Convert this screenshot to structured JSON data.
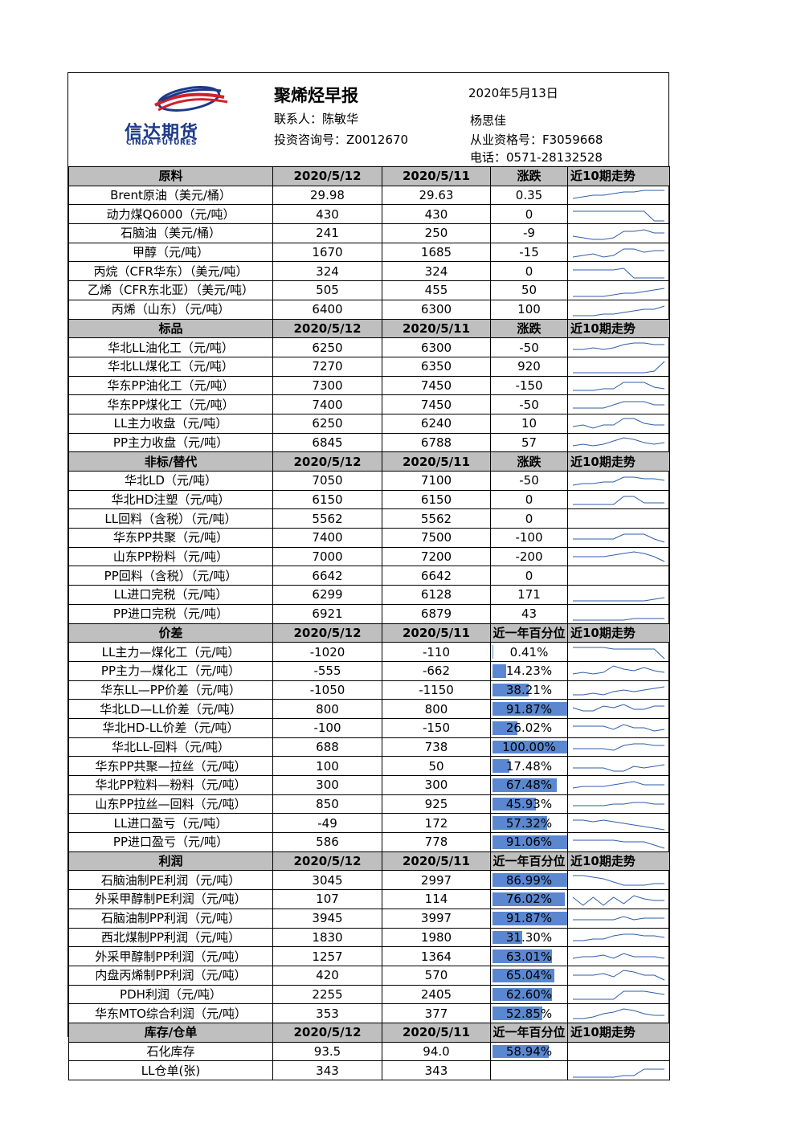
{
  "header": {
    "logo": {
      "cn": "信达期货",
      "en": "CINDA FUTURES"
    },
    "title": "聚烯烃早报",
    "date": "2020年5月13日",
    "contact": "联系人：陈敏华",
    "consult": "投资咨询号：Z0012670",
    "analyst": "杨思佳",
    "license": "从业资格号：F3059668",
    "phone": "电话：0571-28132528"
  },
  "columns": {
    "d1": "2020/5/12",
    "d2": "2020/5/11",
    "change": "涨跌",
    "pct": "近一年百分位",
    "trend": "近10期走势"
  },
  "sections": [
    {
      "title": "原料",
      "col3": "change",
      "rows": [
        {
          "name": "Brent原油（美元/桶）",
          "v1": "29.98",
          "v2": "29.63",
          "c": "0.35",
          "spark": [
            7,
            6,
            5,
            5,
            4,
            3,
            3,
            2,
            2,
            2
          ]
        },
        {
          "name": "动力煤Q6000（元/吨）",
          "v1": "430",
          "v2": "430",
          "c": "0",
          "spark": [
            3,
            3,
            3,
            3,
            3,
            3,
            3,
            3,
            9,
            9
          ]
        },
        {
          "name": "石脑油（美元/桶）",
          "v1": "241",
          "v2": "250",
          "c": "-9",
          "spark": [
            7,
            8,
            9,
            9,
            8,
            4,
            4,
            3,
            5,
            5
          ]
        },
        {
          "name": "甲醇（元/吨）",
          "v1": "1670",
          "v2": "1685",
          "c": "-15",
          "spark": [
            8,
            7,
            6,
            8,
            7,
            3,
            3,
            5,
            4,
            4
          ]
        },
        {
          "name": "丙烷（CFR华东）（美元/吨）",
          "v1": "324",
          "v2": "324",
          "c": "0",
          "spark": [
            4,
            4,
            4,
            4,
            4,
            3,
            9,
            9,
            9,
            9
          ]
        },
        {
          "name": "乙烯（CFR东北亚）（美元/吨）",
          "v1": "505",
          "v2": "455",
          "c": "50",
          "spark": [
            9,
            9,
            9,
            9,
            8,
            7,
            7,
            6,
            5,
            4
          ]
        },
        {
          "name": "丙烯（山东）（元/吨）",
          "v1": "6400",
          "v2": "6300",
          "c": "100",
          "spark": [
            9,
            9,
            9,
            8,
            8,
            7,
            6,
            5,
            5,
            3
          ]
        }
      ]
    },
    {
      "title": "标品",
      "col3": "change",
      "rows": [
        {
          "name": "华北LL油化工（元/吨）",
          "v1": "6250",
          "v2": "6300",
          "c": "-50",
          "spark": [
            6,
            6,
            5,
            6,
            5,
            3,
            2,
            2,
            3,
            3
          ]
        },
        {
          "name": "华北LL煤化工（元/吨）",
          "v1": "7270",
          "v2": "6350",
          "c": "920",
          "spark": [
            9,
            9,
            9,
            9,
            9,
            9,
            9,
            9,
            8,
            2
          ]
        },
        {
          "name": "华东PP油化工（元/吨）",
          "v1": "7300",
          "v2": "7450",
          "c": "-150",
          "spark": [
            8,
            8,
            8,
            7,
            7,
            3,
            3,
            3,
            6,
            7
          ]
        },
        {
          "name": "华东PP煤化工（元/吨）",
          "v1": "7400",
          "v2": "7450",
          "c": "-50",
          "spark": [
            7,
            7,
            7,
            7,
            5,
            3,
            3,
            3,
            5,
            5
          ]
        },
        {
          "name": "LL主力收盘（元/吨）",
          "v1": "6250",
          "v2": "6240",
          "c": "10",
          "spark": [
            7,
            6,
            8,
            6,
            6,
            2,
            2,
            5,
            6,
            6
          ]
        },
        {
          "name": "PP主力收盘（元/吨）",
          "v1": "6845",
          "v2": "6788",
          "c": "57",
          "spark": [
            7,
            6,
            7,
            6,
            4,
            2,
            3,
            5,
            6,
            5
          ]
        }
      ]
    },
    {
      "title": "非标/替代",
      "col3": "change",
      "rows": [
        {
          "name": "华北LD（元/吨）",
          "v1": "7050",
          "v2": "7100",
          "c": "-50",
          "spark": [
            8,
            7,
            7,
            6,
            6,
            3,
            3,
            4,
            4,
            5
          ]
        },
        {
          "name": "华北HD注塑（元/吨）",
          "v1": "6150",
          "v2": "6150",
          "c": "0",
          "spark": [
            8,
            8,
            8,
            8,
            8,
            3,
            3,
            7,
            7,
            7
          ]
        },
        {
          "name": "LL回料（含税）（元/吨）",
          "v1": "5562",
          "v2": "5562",
          "c": "0",
          "spark": []
        },
        {
          "name": "华东PP共聚（元/吨）",
          "v1": "7400",
          "v2": "7500",
          "c": "-100",
          "spark": [
            6,
            6,
            6,
            6,
            6,
            3,
            3,
            3,
            6,
            8
          ]
        },
        {
          "name": "山东PP粉料（元/吨）",
          "v1": "7000",
          "v2": "7200",
          "c": "-200",
          "spark": [
            5,
            5,
            5,
            5,
            4,
            3,
            2,
            3,
            5,
            8
          ]
        },
        {
          "name": "PP回料（含税）（元/吨）",
          "v1": "6642",
          "v2": "6642",
          "c": "0",
          "spark": []
        },
        {
          "name": "LL进口完税（元/吨）",
          "v1": "6299",
          "v2": "6128",
          "c": "171",
          "spark": [
            9,
            9,
            9,
            9,
            9,
            9,
            9,
            9,
            8,
            7
          ]
        },
        {
          "name": "PP进口完税（元/吨）",
          "v1": "6921",
          "v2": "6879",
          "c": "43",
          "spark": [
            9,
            9,
            9,
            9,
            9,
            9,
            8,
            8,
            8,
            8
          ]
        }
      ]
    },
    {
      "title": "价差",
      "col3": "pct",
      "rows": [
        {
          "name": "LL主力—煤化工（元/吨）",
          "v1": "-1020",
          "v2": "-110",
          "c": "0.41%",
          "pct": 0.0041,
          "spark": [
            2,
            2,
            2,
            2,
            3,
            3,
            3,
            3,
            3,
            9
          ]
        },
        {
          "name": "PP主力—煤化工（元/吨）",
          "v1": "-555",
          "v2": "-662",
          "c": "14.23%",
          "pct": 0.1423,
          "spark": [
            7,
            6,
            7,
            6,
            2,
            4,
            5,
            3,
            5,
            6
          ]
        },
        {
          "name": "华东LL—PP价差（元/吨）",
          "v1": "-1050",
          "v2": "-1150",
          "c": "38.21%",
          "pct": 0.3821,
          "spark": [
            8,
            8,
            7,
            8,
            6,
            5,
            6,
            5,
            4,
            3
          ]
        },
        {
          "name": "华北LD—LL价差（元/吨）",
          "v1": "800",
          "v2": "800",
          "c": "91.87%",
          "pct": 0.9187,
          "spark": [
            4,
            6,
            6,
            3,
            4,
            2,
            5,
            5,
            3,
            3
          ]
        },
        {
          "name": "华北HD-LL价差（元/吨）",
          "v1": "-100",
          "v2": "-150",
          "c": "26.02%",
          "pct": 0.2602,
          "spark": [
            4,
            4,
            4,
            4,
            6,
            3,
            5,
            5,
            7,
            6
          ]
        },
        {
          "name": "华北LL-回料（元/吨）",
          "v1": "688",
          "v2": "738",
          "c": "100.00%",
          "pct": 1.0,
          "spark": [
            6,
            6,
            6,
            6,
            7,
            4,
            3,
            3,
            4,
            4
          ]
        },
        {
          "name": "华东PP共聚—拉丝（元/吨）",
          "v1": "100",
          "v2": "50",
          "c": "17.48%",
          "pct": 0.1748,
          "spark": [
            6,
            6,
            6,
            6,
            8,
            8,
            5,
            6,
            5,
            4
          ]
        },
        {
          "name": "华北PP粒料—粉料（元/吨）",
          "v1": "300",
          "v2": "300",
          "c": "67.48%",
          "pct": 0.6748,
          "spark": [
            7,
            6,
            6,
            6,
            5,
            4,
            3,
            5,
            5,
            5
          ]
        },
        {
          "name": "山东PP拉丝—回料（元/吨）",
          "v1": "850",
          "v2": "925",
          "c": "45.93%",
          "pct": 0.4593,
          "spark": [
            6,
            6,
            6,
            6,
            5,
            5,
            4,
            4,
            5,
            5
          ]
        },
        {
          "name": "LL进口盈亏（元/吨）",
          "v1": "-49",
          "v2": "172",
          "c": "57.32%",
          "pct": 0.5732,
          "spark": [
            3,
            3,
            4,
            3,
            4,
            5,
            6,
            7,
            8,
            9
          ]
        },
        {
          "name": "PP进口盈亏（元/吨）",
          "v1": "586",
          "v2": "778",
          "c": "91.06%",
          "pct": 0.9106,
          "spark": [
            4,
            4,
            4,
            4,
            4,
            5,
            5,
            5,
            7,
            9
          ]
        }
      ]
    },
    {
      "title": "利润",
      "col3": "pct",
      "rows": [
        {
          "name": "石脑油制PE利润（元/吨）",
          "v1": "3045",
          "v2": "2997",
          "c": "86.99%",
          "pct": 0.8699,
          "spark": [
            2,
            2,
            3,
            4,
            6,
            8,
            8,
            8,
            7,
            7
          ]
        },
        {
          "name": "外采甲醇制PE利润（元/吨）",
          "v1": "107",
          "v2": "114",
          "c": "76.02%",
          "pct": 0.7602,
          "spark": [
            4,
            9,
            4,
            9,
            4,
            8,
            3,
            5,
            6,
            6
          ]
        },
        {
          "name": "石脑油制PP利润（元/吨）",
          "v1": "3945",
          "v2": "3997",
          "c": "91.87%",
          "pct": 0.9187,
          "spark": [
            6,
            6,
            6,
            6,
            6,
            4,
            6,
            5,
            5,
            5
          ]
        },
        {
          "name": "西北煤制PP利润（元/吨）",
          "v1": "1830",
          "v2": "1980",
          "c": "31.30%",
          "pct": 0.313,
          "spark": [
            7,
            7,
            6,
            6,
            4,
            3,
            3,
            4,
            4,
            5
          ]
        },
        {
          "name": "外采甲醇制PP利润（元/吨）",
          "v1": "1257",
          "v2": "1364",
          "c": "63.01%",
          "pct": 0.6301,
          "spark": [
            6,
            5,
            5,
            4,
            6,
            3,
            5,
            5,
            5,
            6
          ]
        },
        {
          "name": "内盘丙烯制PP利润（元/吨）",
          "v1": "420",
          "v2": "570",
          "c": "65.04%",
          "pct": 0.6504,
          "spark": [
            5,
            5,
            5,
            4,
            6,
            2,
            3,
            5,
            5,
            8
          ]
        },
        {
          "name": "PDH利润（元/吨）",
          "v1": "2255",
          "v2": "2405",
          "c": "62.60%",
          "pct": 0.626,
          "spark": [
            8,
            8,
            8,
            8,
            8,
            3,
            3,
            3,
            4,
            5
          ]
        },
        {
          "name": "华东MTO综合利润（元/吨）",
          "v1": "353",
          "v2": "377",
          "c": "52.85%",
          "pct": 0.5285,
          "spark": [
            8,
            8,
            7,
            5,
            4,
            2,
            3,
            5,
            6,
            6
          ]
        }
      ]
    },
    {
      "title": "库存/仓单",
      "col3": "pct",
      "rows": [
        {
          "name": "石化库存",
          "v1": "93.5",
          "v2": "94.0",
          "c": "58.94%",
          "pct": 0.5894,
          "spark": []
        },
        {
          "name": "LL仓单(张)",
          "v1": "343",
          "v2": "343",
          "c": "",
          "pct": 0,
          "spark": [
            9,
            9,
            9,
            9,
            9,
            8,
            8,
            4,
            4,
            4
          ]
        }
      ]
    }
  ]
}
